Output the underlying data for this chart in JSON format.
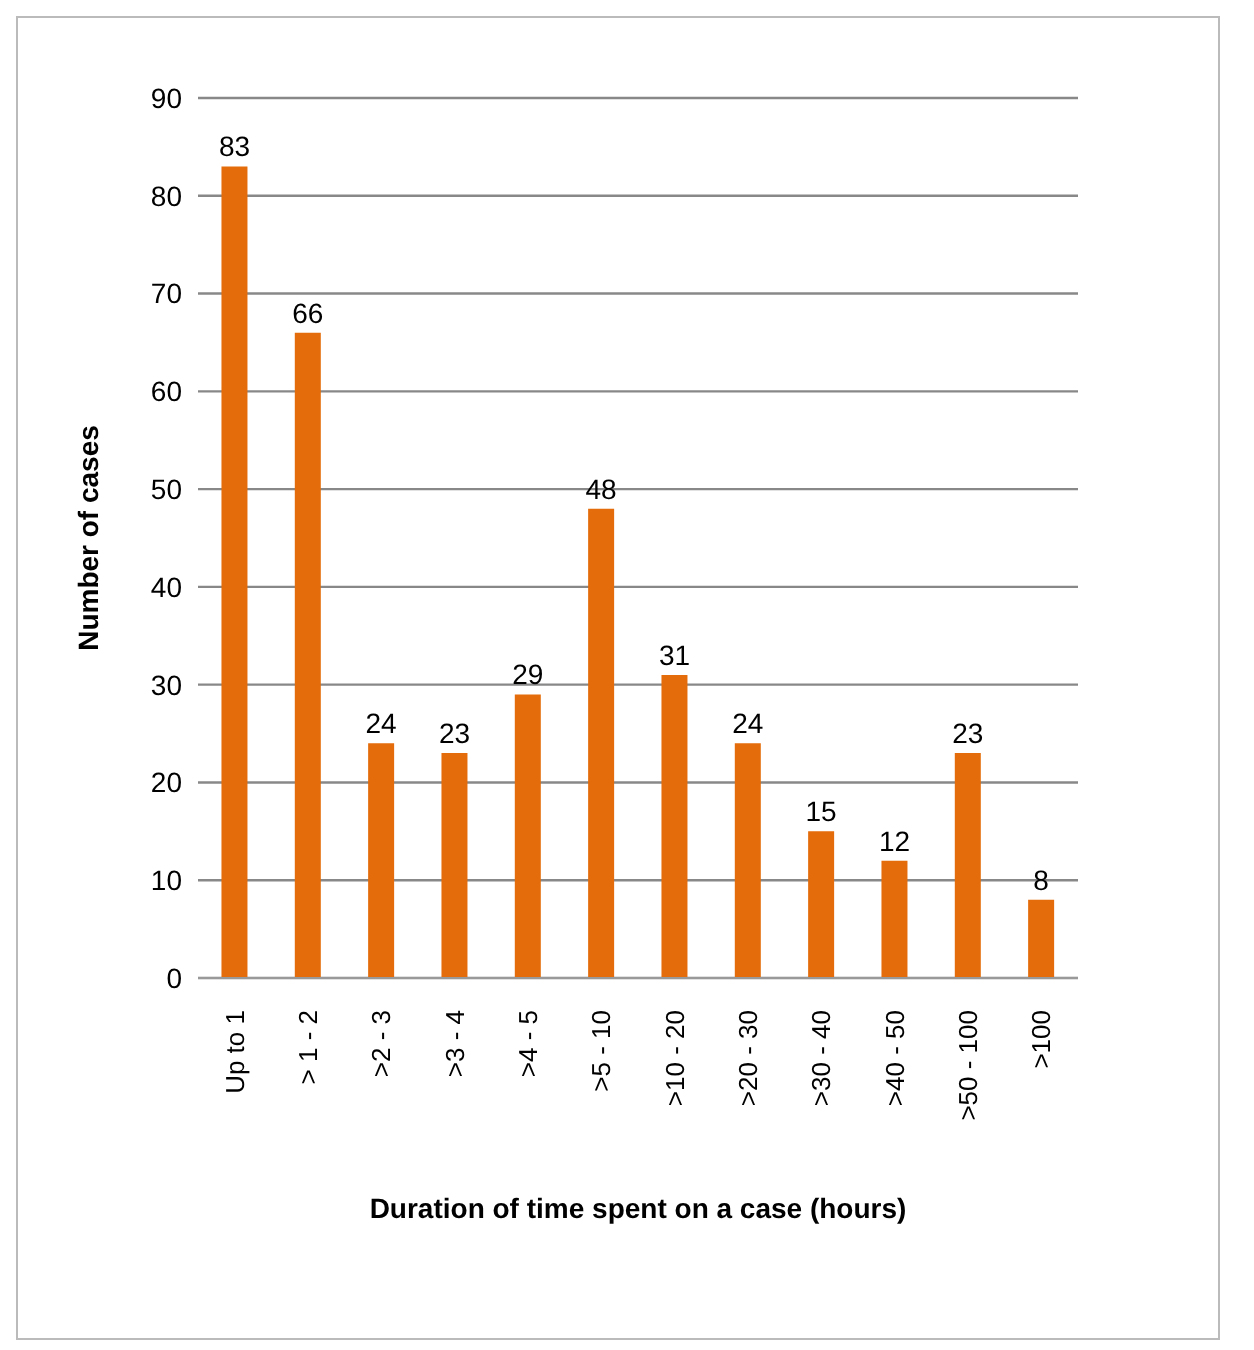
{
  "chart_data": {
    "type": "bar",
    "xlabel": "Duration of time spent on a case (hours)",
    "ylabel": "Number of cases",
    "categories": [
      "Up to 1",
      "> 1 - 2",
      ">2 - 3",
      ">3 - 4",
      ">4 - 5",
      ">5 - 10",
      ">10 - 20",
      ">20 - 30",
      ">30 - 40",
      ">40 - 50",
      ">50 - 100",
      ">100"
    ],
    "values": [
      83,
      66,
      24,
      23,
      29,
      48,
      31,
      24,
      15,
      12,
      23,
      8
    ],
    "color": "#e46c0a",
    "ylim": [
      0,
      90
    ],
    "yticks": [
      0,
      10,
      20,
      30,
      40,
      50,
      60,
      70,
      80,
      90
    ],
    "grid": "y",
    "data_labels": true
  }
}
